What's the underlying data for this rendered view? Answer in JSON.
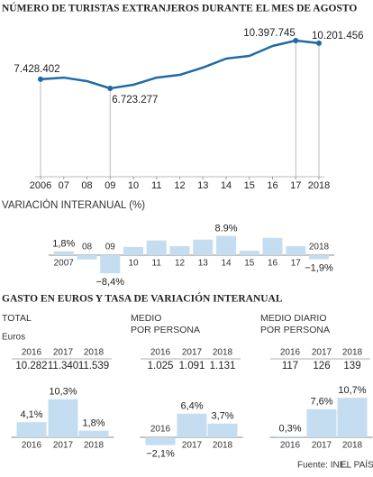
{
  "chart_data": [
    {
      "type": "line",
      "title": "NÚMERO DE TURISTAS EXTRANJEROS DURANTE EL MES DE AGOSTO",
      "categories": [
        "2006",
        "07",
        "08",
        "09",
        "10",
        "11",
        "12",
        "13",
        "14",
        "15",
        "16",
        "17",
        "2018"
      ],
      "values": [
        7428402,
        7550000,
        7280000,
        6723277,
        7000000,
        7550000,
        7760000,
        8320000,
        9010000,
        9220000,
        9980000,
        10397745,
        10201456
      ],
      "value_labels": [
        "7.428.402",
        null,
        null,
        "6.723.277",
        null,
        null,
        null,
        null,
        null,
        null,
        null,
        "10.397.745",
        "10.201.456"
      ],
      "color": "#1f6aa5"
    },
    {
      "type": "bar",
      "title": "VARIACIÓN INTERANUAL (%)",
      "categories": [
        "2007",
        "08",
        "09",
        "10",
        "11",
        "12",
        "13",
        "14",
        "15",
        "16",
        "17",
        "2018"
      ],
      "values": [
        1.8,
        -2.0,
        -8.4,
        3.8,
        6.8,
        4.2,
        7.2,
        8.9,
        2.1,
        8.0,
        4.2,
        -1.9
      ],
      "value_labels": [
        "1,8%",
        null,
        "−8,4%",
        null,
        null,
        null,
        null,
        "8.9%",
        null,
        null,
        null,
        "−1,9%"
      ],
      "color": "#c5ddf0"
    },
    {
      "type": "bar",
      "title": [
        "TOTAL"
      ],
      "unit": "Euros",
      "categories": [
        "2016",
        "2017",
        "2018"
      ],
      "table_values": [
        "10.282",
        "11.340",
        "11.539"
      ],
      "values": [
        4.1,
        10.3,
        1.8
      ],
      "value_labels": [
        "4,1%",
        "10,3%",
        "1,8%"
      ],
      "color": "#c5ddf0"
    },
    {
      "type": "bar",
      "title": [
        "MEDIO",
        "POR PERSONA"
      ],
      "categories": [
        "2016",
        "2017",
        "2018"
      ],
      "table_values": [
        "1.025",
        "1.091",
        "1.131"
      ],
      "values": [
        -2.1,
        6.4,
        3.7
      ],
      "value_labels": [
        "−2,1%",
        "6,4%",
        "3,7%"
      ],
      "color": "#c5ddf0"
    },
    {
      "type": "bar",
      "title": [
        "MEDIO DIARIO",
        "POR PERSONA"
      ],
      "categories": [
        "2016",
        "2017",
        "2018"
      ],
      "table_values": [
        "117",
        "126",
        "139"
      ],
      "values": [
        0.3,
        7.6,
        10.7
      ],
      "value_labels": [
        "0,3%",
        "7,6%",
        "10,7%"
      ],
      "color": "#c5ddf0"
    }
  ],
  "section_title": "GASTO EN EUROS Y TASA DE VARIACIÓN INTERANUAL",
  "source": "Fuente: INE.",
  "credit": "EL PAÍS"
}
